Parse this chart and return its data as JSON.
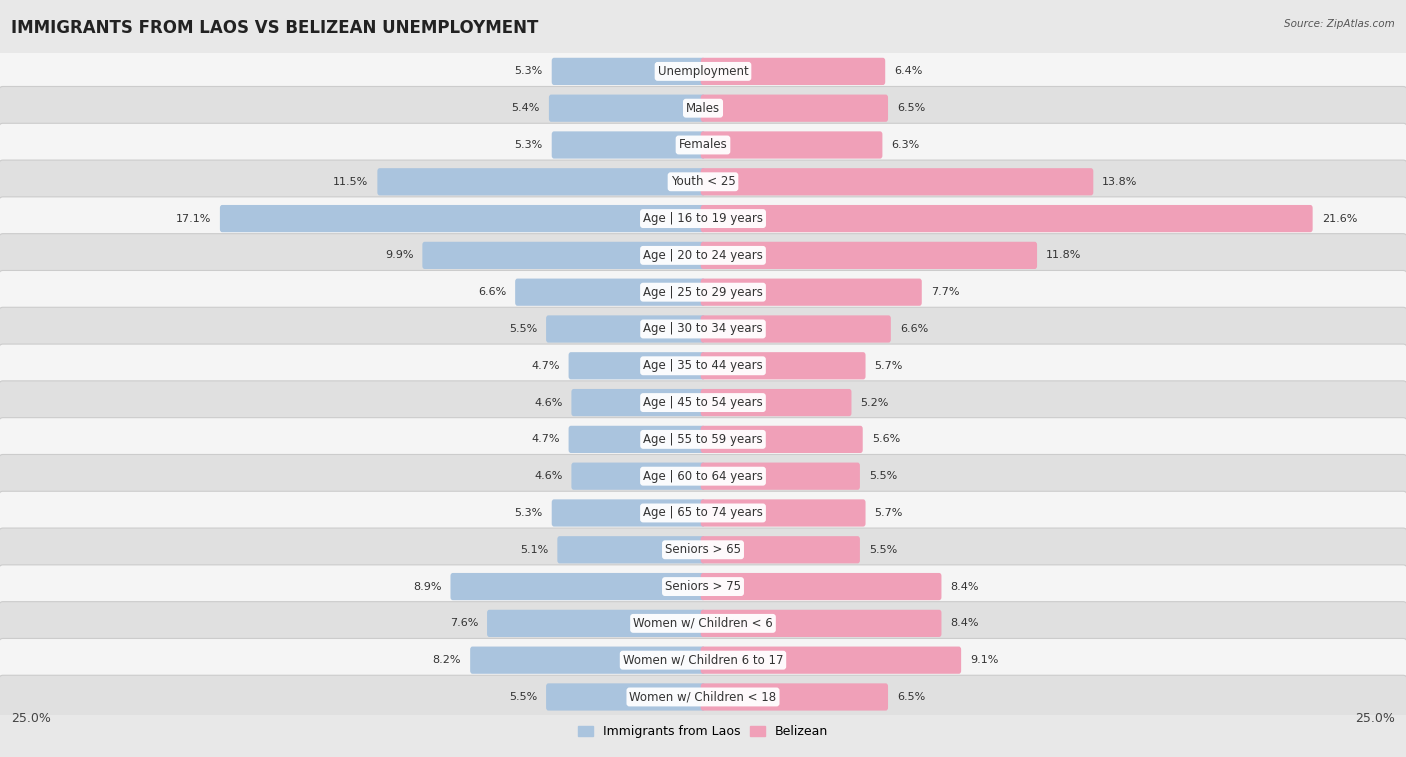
{
  "title": "IMMIGRANTS FROM LAOS VS BELIZEAN UNEMPLOYMENT",
  "source": "Source: ZipAtlas.com",
  "categories": [
    "Unemployment",
    "Males",
    "Females",
    "Youth < 25",
    "Age | 16 to 19 years",
    "Age | 20 to 24 years",
    "Age | 25 to 29 years",
    "Age | 30 to 34 years",
    "Age | 35 to 44 years",
    "Age | 45 to 54 years",
    "Age | 55 to 59 years",
    "Age | 60 to 64 years",
    "Age | 65 to 74 years",
    "Seniors > 65",
    "Seniors > 75",
    "Women w/ Children < 6",
    "Women w/ Children 6 to 17",
    "Women w/ Children < 18"
  ],
  "laos_values": [
    5.3,
    5.4,
    5.3,
    11.5,
    17.1,
    9.9,
    6.6,
    5.5,
    4.7,
    4.6,
    4.7,
    4.6,
    5.3,
    5.1,
    8.9,
    7.6,
    8.2,
    5.5
  ],
  "belizean_values": [
    6.4,
    6.5,
    6.3,
    13.8,
    21.6,
    11.8,
    7.7,
    6.6,
    5.7,
    5.2,
    5.6,
    5.5,
    5.7,
    5.5,
    8.4,
    8.4,
    9.1,
    6.5
  ],
  "laos_color": "#aac4de",
  "belizean_color": "#f0a0b8",
  "laos_label": "Immigrants from Laos",
  "belizean_label": "Belizean",
  "axis_limit": 25.0,
  "bg_color": "#e8e8e8",
  "row_bg_even": "#f5f5f5",
  "row_bg_odd": "#e0e0e0",
  "title_fontsize": 12,
  "label_fontsize": 8.5,
  "value_fontsize": 8
}
